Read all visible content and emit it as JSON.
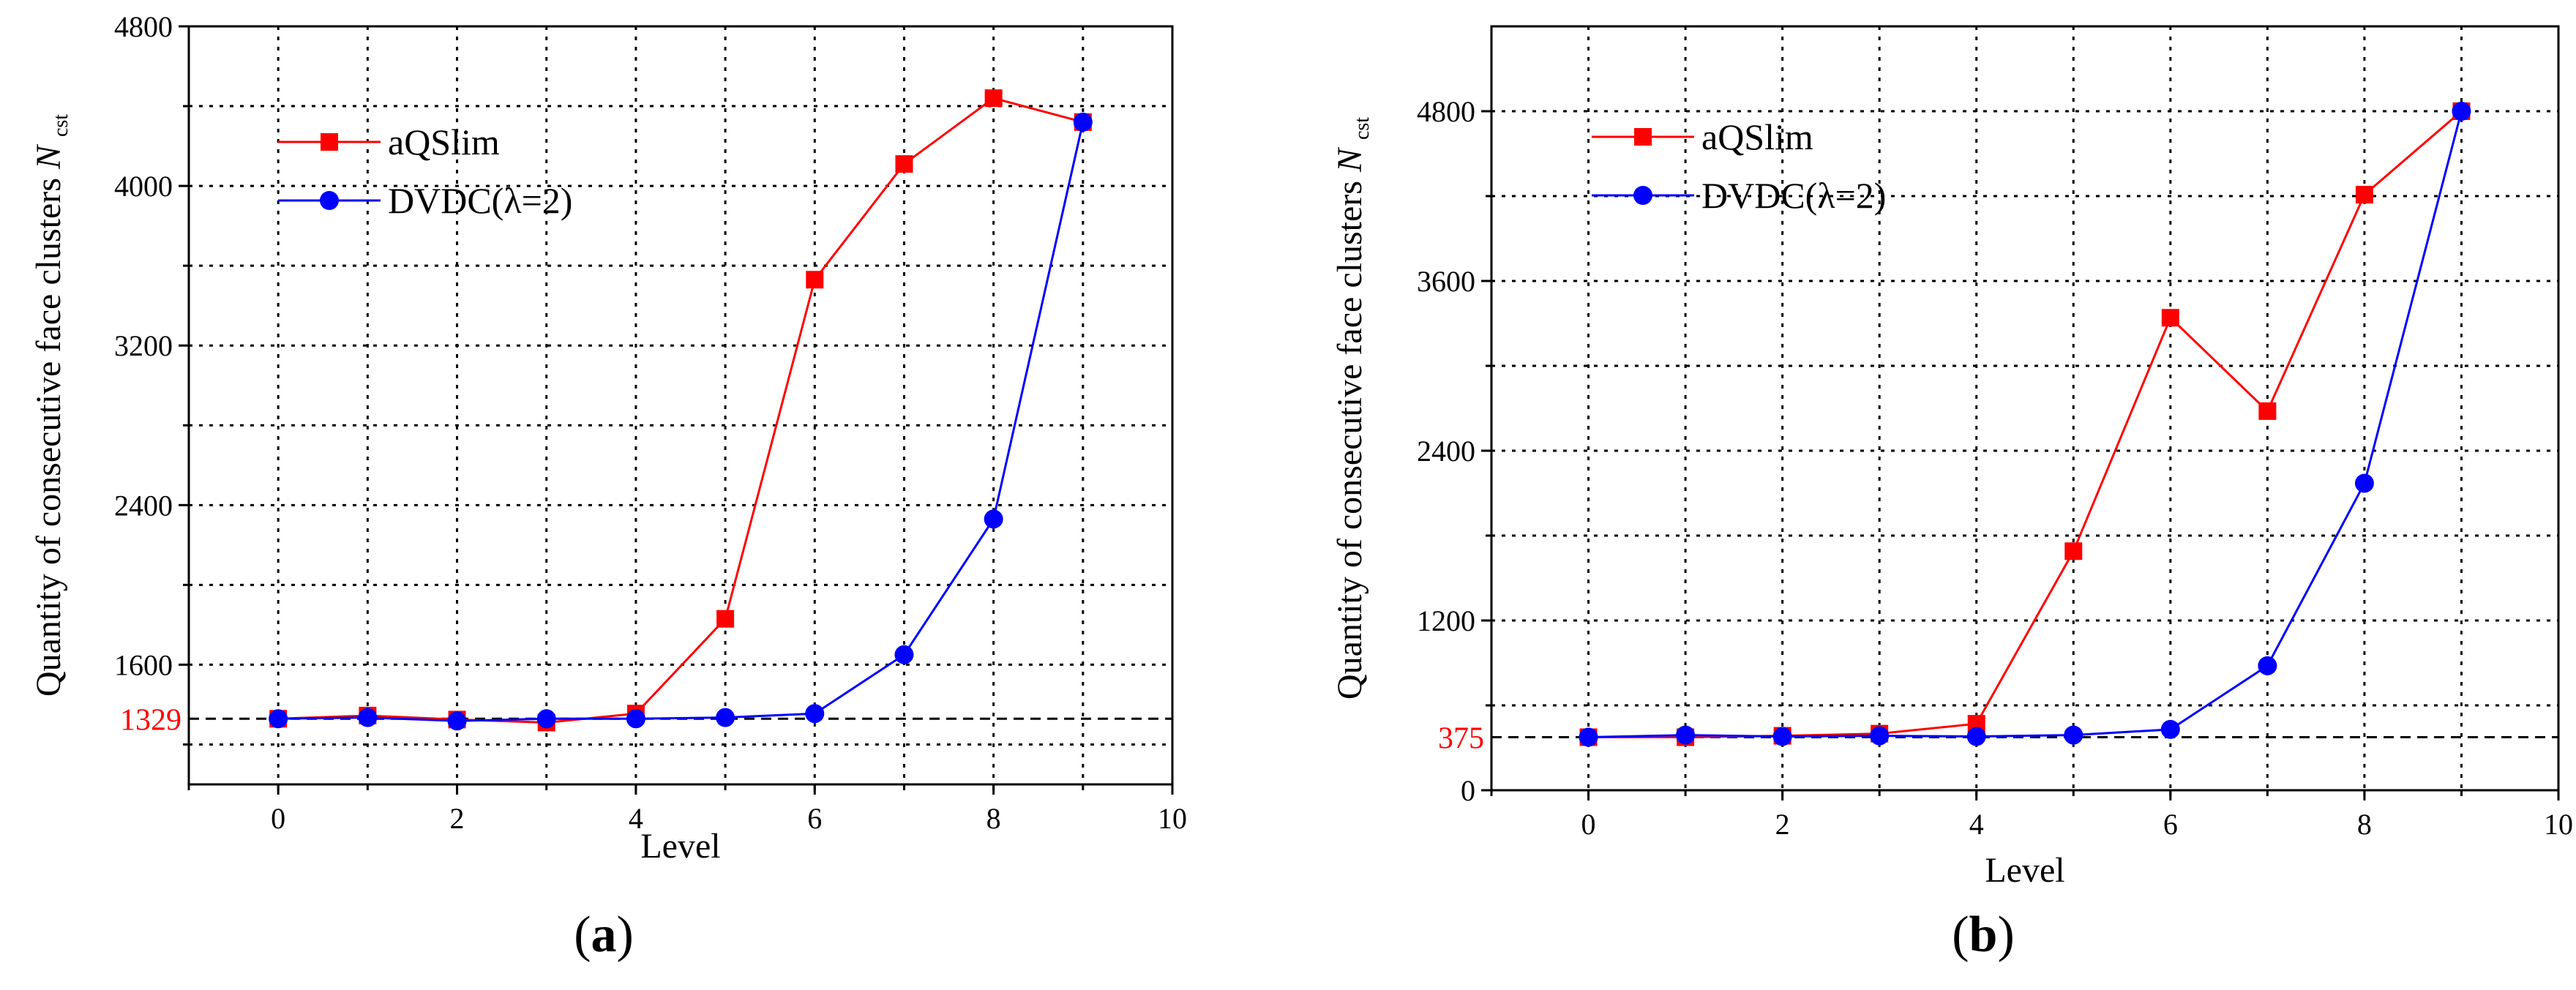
{
  "chart_data": [
    {
      "type": "line",
      "panel_label": "a",
      "xlabel": "Level",
      "ylabel": "Quantity of consecutive face clusters",
      "ylabel_symbol": "N",
      "ylabel_subscript": "cst",
      "xlim": [
        -1,
        10
      ],
      "ylim": [
        1000,
        4800
      ],
      "xticks": [
        0,
        2,
        4,
        6,
        8,
        10
      ],
      "yticks": [
        1600,
        2400,
        3200,
        4000,
        4800
      ],
      "minor_y_grid": [
        1200,
        2000,
        2800,
        3600,
        4400
      ],
      "reference_line": {
        "value": 1329,
        "label": "1329"
      },
      "legend": {
        "position": "top-left"
      },
      "series": [
        {
          "name": "aQSlim",
          "color": "#ff0000",
          "marker": "square",
          "x": [
            0,
            1,
            2,
            3,
            4,
            5,
            6,
            7,
            8,
            9
          ],
          "values": [
            1329,
            1345,
            1325,
            1310,
            1355,
            1830,
            3530,
            4110,
            4440,
            4320
          ]
        },
        {
          "name": "DVDC(λ=2)",
          "color": "#0000ff",
          "marker": "circle",
          "x": [
            0,
            1,
            2,
            3,
            4,
            5,
            6,
            7,
            8,
            9
          ],
          "values": [
            1329,
            1335,
            1318,
            1329,
            1329,
            1335,
            1355,
            1650,
            2330,
            4320
          ]
        }
      ]
    },
    {
      "type": "line",
      "panel_label": "b",
      "xlabel": "Level",
      "ylabel": "Quantity of consecutive face clusters",
      "ylabel_symbol": "N",
      "ylabel_subscript": "cst",
      "xlim": [
        -1,
        10
      ],
      "ylim": [
        0,
        5400
      ],
      "xticks": [
        0,
        2,
        4,
        6,
        8,
        10
      ],
      "yticks": [
        0,
        1200,
        2400,
        3600,
        4800
      ],
      "minor_y_grid": [
        600,
        1800,
        3000,
        4200
      ],
      "reference_line": {
        "value": 375,
        "label": "375"
      },
      "legend": {
        "position": "top-left"
      },
      "series": [
        {
          "name": "aQSlim",
          "color": "#ff0000",
          "marker": "square",
          "x": [
            0,
            1,
            2,
            3,
            4,
            5,
            6,
            7,
            8,
            9
          ],
          "values": [
            375,
            375,
            385,
            400,
            470,
            1690,
            3340,
            2680,
            4210,
            4800
          ]
        },
        {
          "name": "DVDC(λ=2)",
          "color": "#0000ff",
          "marker": "circle",
          "x": [
            0,
            1,
            2,
            3,
            4,
            5,
            6,
            7,
            8,
            9
          ],
          "values": [
            375,
            390,
            380,
            385,
            380,
            390,
            430,
            880,
            2170,
            4800
          ]
        }
      ]
    }
  ]
}
